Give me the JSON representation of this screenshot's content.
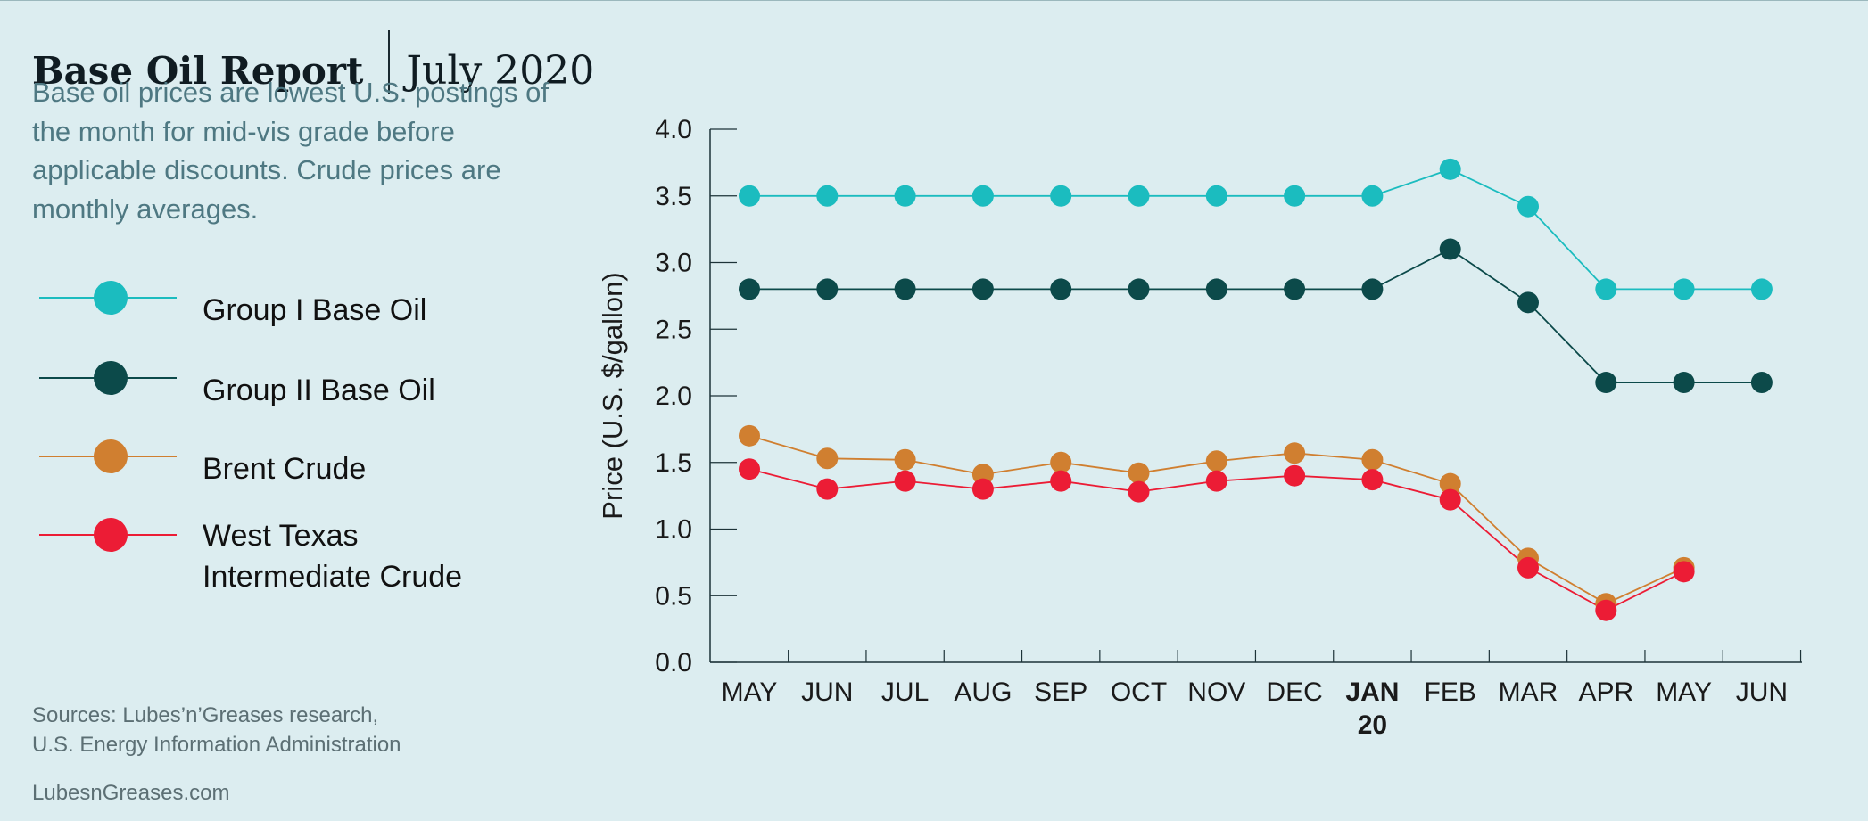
{
  "header": {
    "title": "Base Oil Report",
    "date": "July 2020",
    "subtitle": "Base oil prices are lowest U.S. postings of the month for mid-vis grade before applicable discounts. Crude prices are monthly averages."
  },
  "legend": [
    {
      "label": "Group I Base Oil",
      "color": "#1bbcbf"
    },
    {
      "label": "Group II Base Oil",
      "color": "#0c4a4a"
    },
    {
      "label": "Brent Crude",
      "color": "#d07f30"
    },
    {
      "label": "West Texas Intermediate Crude",
      "color": "#ec1c35"
    }
  ],
  "footer": {
    "sources": "Sources: Lubes’n’Greases research,\nU.S. Energy Information Administration",
    "site": "LubesnGreases.com"
  },
  "chart_data": {
    "type": "line",
    "categories": [
      "MAY",
      "JUN",
      "JUL",
      "AUG",
      "SEP",
      "OCT",
      "NOV",
      "DEC",
      "JAN",
      "FEB",
      "MAR",
      "APR",
      "MAY",
      "JUN"
    ],
    "category_sublabels": {
      "8": "20"
    },
    "bold_category_index": 8,
    "ylabel": "Price (U.S. $/gallon)",
    "ylim": [
      0,
      4
    ],
    "yticks": [
      "0.0",
      "0.5",
      "1.0",
      "1.5",
      "2.0",
      "2.5",
      "3.0",
      "3.5",
      "4.0"
    ],
    "grid": false,
    "series": [
      {
        "name": "Group I Base Oil",
        "color": "#1bbcbf",
        "values": [
          3.5,
          3.5,
          3.5,
          3.5,
          3.5,
          3.5,
          3.5,
          3.5,
          3.5,
          3.7,
          3.42,
          2.8,
          2.8,
          2.8
        ]
      },
      {
        "name": "Group II Base Oil",
        "color": "#0c4a4a",
        "values": [
          2.8,
          2.8,
          2.8,
          2.8,
          2.8,
          2.8,
          2.8,
          2.8,
          2.8,
          3.1,
          2.7,
          2.1,
          2.1,
          2.1
        ]
      },
      {
        "name": "Brent Crude",
        "color": "#d07f30",
        "values": [
          1.7,
          1.53,
          1.52,
          1.41,
          1.5,
          1.42,
          1.51,
          1.57,
          1.52,
          1.34,
          0.78,
          0.44,
          0.71,
          null
        ]
      },
      {
        "name": "West Texas Intermediate Crude",
        "color": "#ec1c35",
        "values": [
          1.45,
          1.3,
          1.36,
          1.3,
          1.36,
          1.28,
          1.36,
          1.4,
          1.37,
          1.22,
          0.71,
          0.39,
          0.68,
          null
        ]
      }
    ]
  }
}
